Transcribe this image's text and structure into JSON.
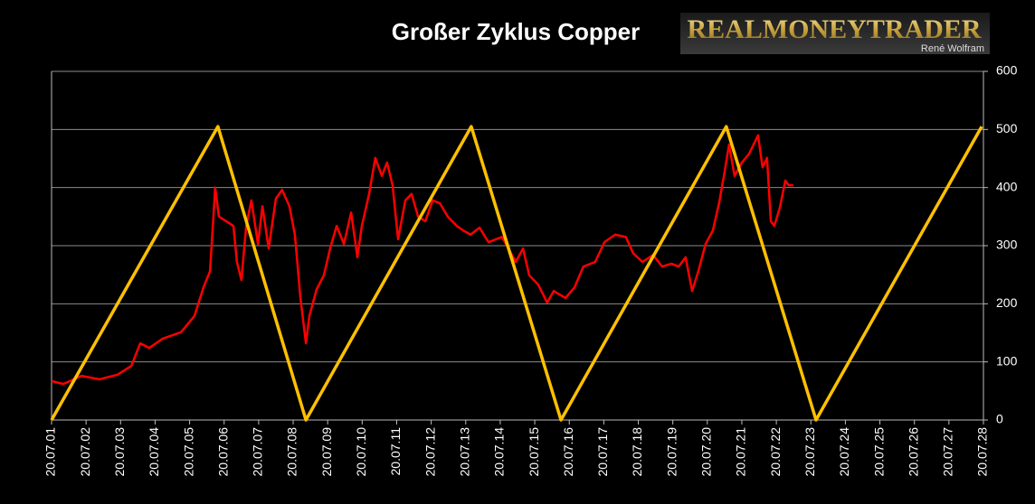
{
  "chart_data": {
    "type": "line",
    "title": "Großer Zyklus Copper",
    "logo": {
      "name": "REALMONEYTRADER",
      "author": "René Wolfram"
    },
    "xlim": [
      2001.55,
      2028.55
    ],
    "xticks": [
      {
        "value": 2001.55,
        "label": "20.07.01"
      },
      {
        "value": 2002.55,
        "label": "20.07.02"
      },
      {
        "value": 2003.55,
        "label": "20.07.03"
      },
      {
        "value": 2004.55,
        "label": "20.07.04"
      },
      {
        "value": 2005.55,
        "label": "20.07.05"
      },
      {
        "value": 2006.55,
        "label": "20.07.06"
      },
      {
        "value": 2007.55,
        "label": "20.07.07"
      },
      {
        "value": 2008.55,
        "label": "20.07.08"
      },
      {
        "value": 2009.55,
        "label": "20.07.09"
      },
      {
        "value": 2010.55,
        "label": "20.07.10"
      },
      {
        "value": 2011.55,
        "label": "20.07.11"
      },
      {
        "value": 2012.55,
        "label": "20.07.12"
      },
      {
        "value": 2013.55,
        "label": "20.07.13"
      },
      {
        "value": 2014.55,
        "label": "20.07.14"
      },
      {
        "value": 2015.55,
        "label": "20.07.15"
      },
      {
        "value": 2016.55,
        "label": "20.07.16"
      },
      {
        "value": 2017.55,
        "label": "20.07.17"
      },
      {
        "value": 2018.55,
        "label": "20.07.18"
      },
      {
        "value": 2019.55,
        "label": "20.07.19"
      },
      {
        "value": 2020.55,
        "label": "20.07.20"
      },
      {
        "value": 2021.55,
        "label": "20.07.21"
      },
      {
        "value": 2022.55,
        "label": "20.07.22"
      },
      {
        "value": 2023.55,
        "label": "20.07.23"
      },
      {
        "value": 2024.55,
        "label": "20.07.24"
      },
      {
        "value": 2025.55,
        "label": "20.07.25"
      },
      {
        "value": 2026.55,
        "label": "20.07.26"
      },
      {
        "value": 2027.55,
        "label": "20.07.27"
      },
      {
        "value": 2028.55,
        "label": "20.07.28"
      }
    ],
    "ylim": [
      0,
      600
    ],
    "yticks": [
      0,
      100,
      200,
      300,
      400,
      500,
      600
    ],
    "grid": true,
    "series": [
      {
        "color": "#ff0000",
        "width": 2.5,
        "x": [
          2001.55,
          2001.89,
          2002.42,
          2002.94,
          2003.46,
          2003.86,
          2004.12,
          2004.38,
          2004.77,
          2005.3,
          2005.69,
          2005.95,
          2006.14,
          2006.24,
          2006.29,
          2006.4,
          2006.61,
          2006.82,
          2006.92,
          2007.05,
          2007.19,
          2007.34,
          2007.53,
          2007.66,
          2007.84,
          2008.05,
          2008.23,
          2008.44,
          2008.6,
          2008.76,
          2008.92,
          2009.02,
          2009.23,
          2009.44,
          2009.62,
          2009.81,
          2010.02,
          2010.23,
          2010.41,
          2010.54,
          2010.75,
          2010.93,
          2011.12,
          2011.27,
          2011.43,
          2011.59,
          2011.8,
          2011.98,
          2012.17,
          2012.38,
          2012.59,
          2012.8,
          2013.03,
          2013.29,
          2013.48,
          2013.69,
          2013.95,
          2014.21,
          2014.6,
          2015.0,
          2015.21,
          2015.39,
          2015.65,
          2015.91,
          2016.1,
          2016.44,
          2016.7,
          2016.96,
          2017.3,
          2017.57,
          2017.88,
          2018.19,
          2018.4,
          2018.67,
          2018.98,
          2019.24,
          2019.51,
          2019.72,
          2019.92,
          2020.11,
          2020.29,
          2020.5,
          2020.71,
          2020.89,
          2021.03,
          2021.18,
          2021.34,
          2021.55,
          2021.76,
          2022.02,
          2022.15,
          2022.28,
          2022.39,
          2022.49,
          2022.65,
          2022.81,
          2022.91,
          2023.04
        ],
        "values": [
          67,
          62,
          76,
          70,
          78,
          93,
          132,
          124,
          140,
          151,
          179,
          228,
          256,
          350,
          400,
          350,
          342,
          334,
          272,
          241,
          334,
          378,
          303,
          368,
          295,
          381,
          396,
          368,
          319,
          210,
          132,
          179,
          225,
          249,
          295,
          334,
          303,
          357,
          280,
          334,
          389,
          451,
          420,
          443,
          404,
          311,
          378,
          389,
          350,
          342,
          378,
          373,
          350,
          334,
          326,
          319,
          331,
          306,
          315,
          272,
          295,
          249,
          233,
          202,
          222,
          210,
          228,
          264,
          272,
          306,
          319,
          315,
          287,
          272,
          284,
          264,
          269,
          264,
          280,
          222,
          256,
          303,
          326,
          373,
          420,
          474,
          420,
          443,
          458,
          490,
          435,
          451,
          342,
          334,
          365,
          412,
          404,
          404
        ]
      },
      {
        "color": "#ffc000",
        "width": 3.5,
        "x": [
          2001.55,
          2006.37,
          2008.92,
          2013.71,
          2016.31,
          2021.1,
          2023.7,
          2028.5
        ],
        "values": [
          0,
          505,
          0,
          505,
          0,
          505,
          0,
          505
        ]
      }
    ]
  }
}
